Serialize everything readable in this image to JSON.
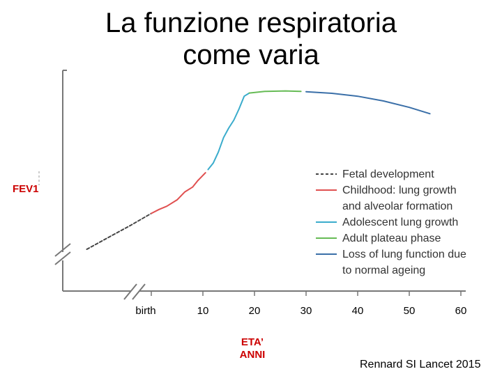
{
  "title": {
    "line1": "La funzione respiratoria",
    "line2": "come varia"
  },
  "source": "Rennard SI Lancet 2015",
  "chart_data": {
    "type": "line",
    "title": "La funzione respiratoria come varia",
    "ylabel": "FEV1",
    "xlabel": [
      "ETA’",
      "ANNI"
    ],
    "x_tick_labels": [
      "birth",
      "10",
      "20",
      "30",
      "40",
      "50",
      "60"
    ],
    "x_ticks": [
      0,
      10,
      20,
      30,
      40,
      50,
      60
    ],
    "xlim": [
      -13,
      63
    ],
    "ylim": [
      0,
      100
    ],
    "grid": false,
    "y_ticks_labeled": false,
    "legend_position": "center-right",
    "series": [
      {
        "name": "Fetal development",
        "color": "#444444",
        "style": "dashed",
        "points": [
          [
            -12.5,
            0
          ],
          [
            -8,
            8
          ],
          [
            -4,
            15
          ],
          [
            0,
            22.5
          ]
        ]
      },
      {
        "name": "Childhood: lung growth and alveolar formation",
        "color": "#e05050",
        "style": "solid",
        "points": [
          [
            0,
            22.5
          ],
          [
            1.5,
            25
          ],
          [
            3,
            27
          ],
          [
            5,
            31
          ],
          [
            6.5,
            36
          ],
          [
            8,
            39
          ],
          [
            9,
            43
          ],
          [
            10.5,
            48
          ]
        ]
      },
      {
        "name": "Adolescent lung growth",
        "color": "#3aaccc",
        "style": "solid",
        "points": [
          [
            11,
            50
          ],
          [
            12,
            54
          ],
          [
            13,
            61
          ],
          [
            14,
            70
          ],
          [
            15,
            76
          ],
          [
            16,
            81
          ],
          [
            17,
            88
          ],
          [
            18,
            96
          ],
          [
            19,
            98
          ]
        ]
      },
      {
        "name": "Adult plateau phase",
        "color": "#66bb55",
        "style": "solid",
        "points": [
          [
            19,
            98
          ],
          [
            22,
            99
          ],
          [
            26,
            99.3
          ],
          [
            29,
            99
          ]
        ]
      },
      {
        "name": "Loss of lung function due to normal ageing",
        "color": "#3a6fa8",
        "style": "solid",
        "points": [
          [
            30,
            98.8
          ],
          [
            35,
            97.8
          ],
          [
            40,
            96
          ],
          [
            45,
            93
          ],
          [
            50,
            89
          ],
          [
            54,
            85
          ]
        ]
      }
    ]
  }
}
